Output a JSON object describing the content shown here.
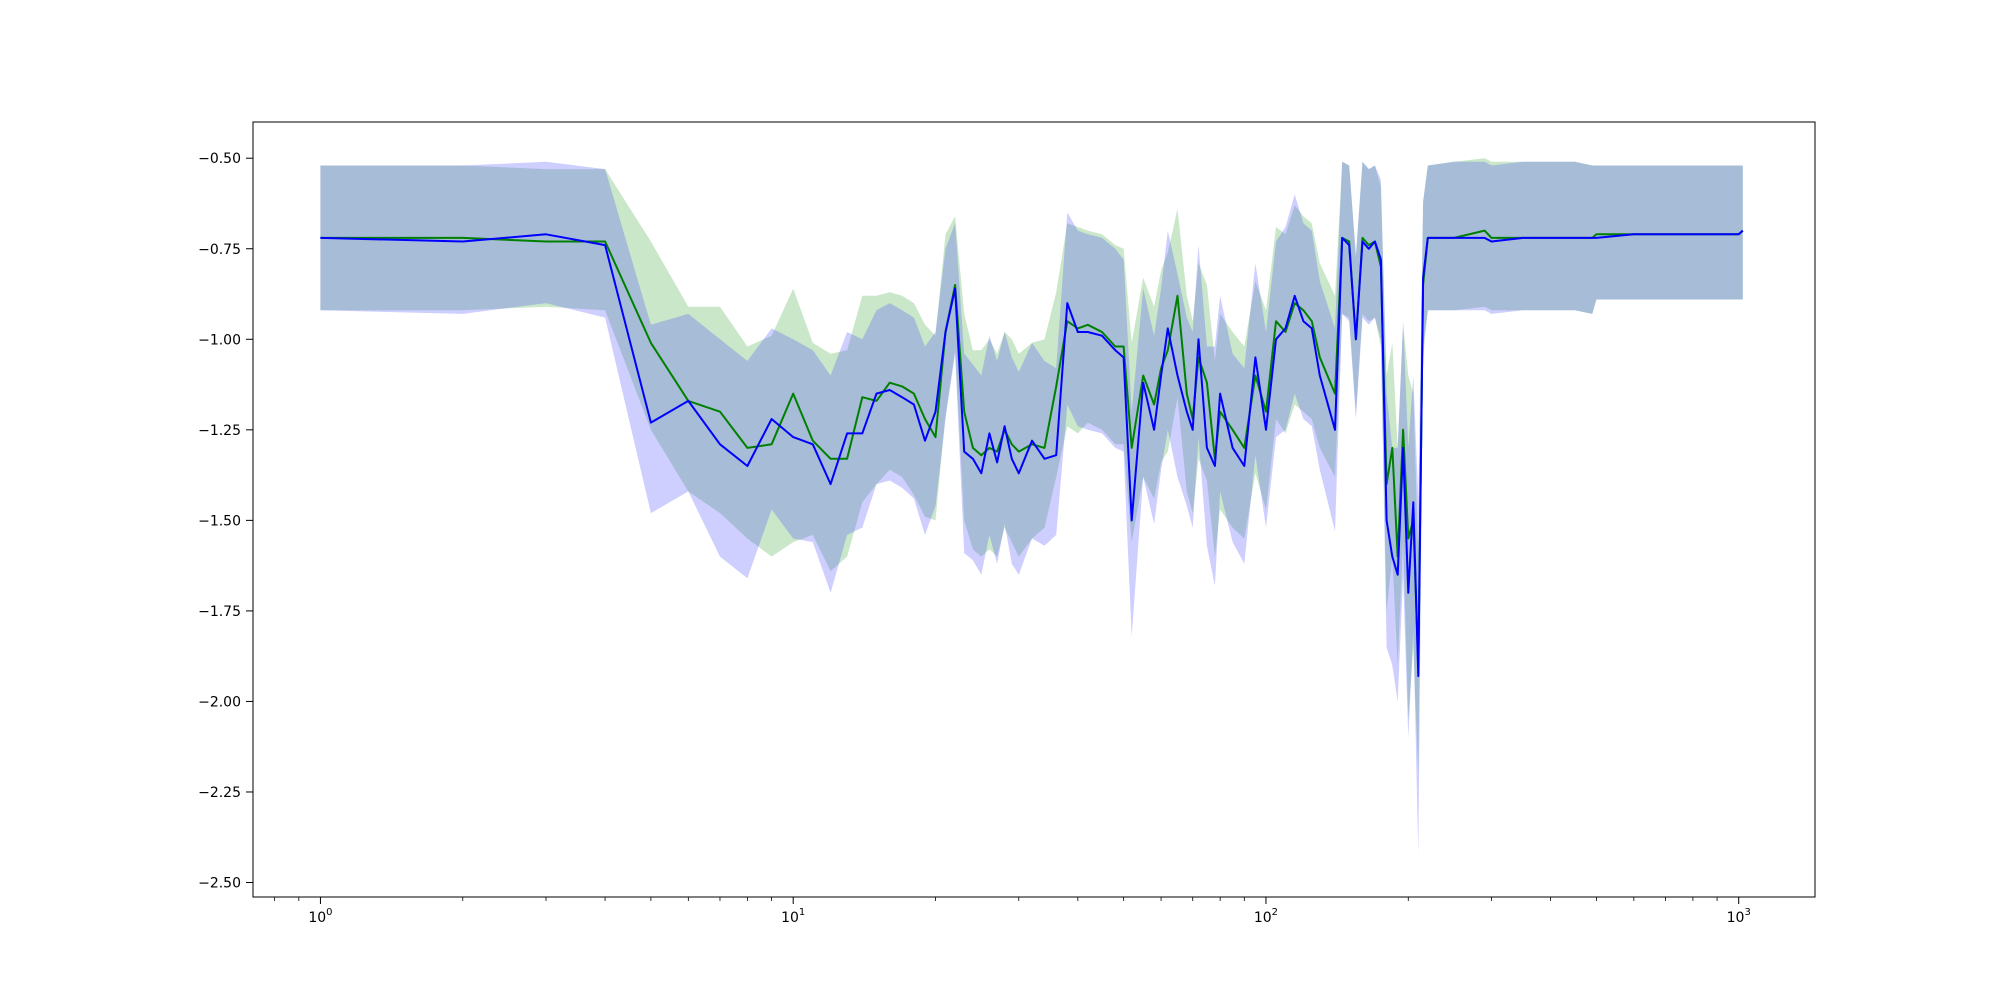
{
  "chart_data": {
    "type": "line",
    "x_scale": "log",
    "xlim": [
      0.72,
      1450
    ],
    "ylim": [
      -2.54,
      -0.4
    ],
    "grid": false,
    "legend": "none",
    "x_ticks": [
      {
        "value": 1,
        "base": "10",
        "exp": "0"
      },
      {
        "value": 10,
        "base": "10",
        "exp": "1"
      },
      {
        "value": 100,
        "base": "10",
        "exp": "2"
      },
      {
        "value": 1000,
        "base": "10",
        "exp": "3"
      }
    ],
    "y_ticks": [
      {
        "value": -0.5,
        "label": "−0.50"
      },
      {
        "value": -0.75,
        "label": "−0.75"
      },
      {
        "value": -1.0,
        "label": "−1.00"
      },
      {
        "value": -1.25,
        "label": "−1.25"
      },
      {
        "value": -1.5,
        "label": "−1.50"
      },
      {
        "value": -1.75,
        "label": "−1.75"
      },
      {
        "value": -2.0,
        "label": "−2.00"
      },
      {
        "value": -2.25,
        "label": "−2.25"
      },
      {
        "value": -2.5,
        "label": "−2.50"
      }
    ],
    "series": [
      {
        "color": "#008000",
        "band_color": "#2ca02c",
        "x": [
          1,
          2,
          3,
          4,
          5,
          6,
          7,
          8,
          9,
          10,
          11,
          12,
          13,
          14,
          15,
          16,
          17,
          18,
          19,
          20,
          21,
          22,
          23,
          24,
          25,
          26,
          27,
          28,
          29,
          30,
          32,
          34,
          36,
          38,
          40,
          42,
          45,
          48,
          50,
          52,
          55,
          58,
          60,
          62,
          65,
          68,
          70,
          72,
          75,
          78,
          80,
          85,
          90,
          95,
          100,
          105,
          110,
          115,
          120,
          125,
          130,
          140,
          145,
          150,
          155,
          160,
          165,
          170,
          175,
          180,
          185,
          190,
          195,
          200,
          205,
          210,
          215,
          220,
          250,
          290,
          300,
          350,
          390,
          400,
          450,
          490,
          500,
          600,
          800,
          1000,
          1020
        ],
        "y": [
          -0.72,
          -0.72,
          -0.73,
          -0.73,
          -1.01,
          -1.17,
          -1.2,
          -1.3,
          -1.29,
          -1.15,
          -1.28,
          -1.33,
          -1.33,
          -1.16,
          -1.17,
          -1.12,
          -1.13,
          -1.15,
          -1.22,
          -1.27,
          -0.98,
          -0.85,
          -1.2,
          -1.3,
          -1.32,
          -1.3,
          -1.31,
          -1.25,
          -1.29,
          -1.31,
          -1.29,
          -1.3,
          -1.13,
          -0.95,
          -0.97,
          -0.96,
          -0.98,
          -1.02,
          -1.02,
          -1.3,
          -1.1,
          -1.18,
          -1.08,
          -1.03,
          -0.88,
          -1.15,
          -1.22,
          -1.05,
          -1.12,
          -1.33,
          -1.2,
          -1.25,
          -1.3,
          -1.1,
          -1.2,
          -0.95,
          -0.98,
          -0.9,
          -0.92,
          -0.95,
          -1.05,
          -1.15,
          -0.72,
          -0.73,
          -1.0,
          -0.72,
          -0.74,
          -0.73,
          -0.8,
          -1.4,
          -1.3,
          -1.6,
          -1.25,
          -1.55,
          -1.5,
          -1.9,
          -0.85,
          -0.72,
          -0.72,
          -0.7,
          -0.72,
          -0.72,
          -0.72,
          -0.72,
          -0.72,
          -0.72,
          -0.71,
          -0.71,
          -0.71,
          -0.71,
          -0.7
        ],
        "lower": [
          -0.92,
          -0.92,
          -0.91,
          -0.92,
          -1.25,
          -1.42,
          -1.48,
          -1.55,
          -1.6,
          -1.56,
          -1.54,
          -1.64,
          -1.6,
          -1.45,
          -1.4,
          -1.36,
          -1.38,
          -1.43,
          -1.49,
          -1.5,
          -1.21,
          -1.03,
          -1.5,
          -1.58,
          -1.6,
          -1.58,
          -1.6,
          -1.52,
          -1.56,
          -1.6,
          -1.55,
          -1.52,
          -1.38,
          -1.24,
          -1.26,
          -1.23,
          -1.25,
          -1.29,
          -1.29,
          -1.56,
          -1.38,
          -1.44,
          -1.34,
          -1.31,
          -1.16,
          -1.42,
          -1.48,
          -1.33,
          -1.39,
          -1.6,
          -1.47,
          -1.52,
          -1.55,
          -1.37,
          -1.47,
          -1.22,
          -1.26,
          -1.18,
          -1.2,
          -1.22,
          -1.3,
          -1.38,
          -0.93,
          -0.94,
          -1.2,
          -0.93,
          -0.95,
          -0.94,
          -1.02,
          -1.75,
          -1.6,
          -1.9,
          -1.55,
          -2.05,
          -1.85,
          -2.2,
          -1.05,
          -0.92,
          -0.92,
          -0.91,
          -0.92,
          -0.92,
          -0.92,
          -0.92,
          -0.92,
          -0.93,
          -0.89,
          -0.89,
          -0.89,
          -0.89,
          -0.89
        ],
        "upper": [
          -0.52,
          -0.52,
          -0.53,
          -0.53,
          -0.73,
          -0.91,
          -0.91,
          -1.02,
          -0.99,
          -0.86,
          -1.01,
          -1.04,
          -1.03,
          -0.88,
          -0.88,
          -0.87,
          -0.88,
          -0.9,
          -0.96,
          -0.99,
          -0.71,
          -0.66,
          -0.93,
          -1.03,
          -1.03,
          -1.0,
          -1.04,
          -0.98,
          -1.0,
          -1.04,
          -1.01,
          -1.0,
          -0.87,
          -0.68,
          -0.69,
          -0.7,
          -0.71,
          -0.74,
          -0.75,
          -1.01,
          -0.83,
          -0.91,
          -0.81,
          -0.76,
          -0.64,
          -0.88,
          -0.95,
          -0.79,
          -0.85,
          -1.06,
          -0.93,
          -0.98,
          -1.02,
          -0.84,
          -0.92,
          -0.69,
          -0.71,
          -0.63,
          -0.66,
          -0.68,
          -0.79,
          -0.88,
          -0.51,
          -0.52,
          -0.77,
          -0.51,
          -0.53,
          -0.52,
          -0.58,
          -1.1,
          -1.01,
          -1.3,
          -0.96,
          -1.1,
          -1.15,
          -1.6,
          -0.62,
          -0.52,
          -0.51,
          -0.5,
          -0.51,
          -0.51,
          -0.51,
          -0.51,
          -0.51,
          -0.52,
          -0.52,
          -0.52,
          -0.52,
          -0.52,
          -0.52
        ]
      },
      {
        "color": "#0000ff",
        "band_color": "#3b3bff",
        "x": [
          1,
          2,
          3,
          4,
          5,
          6,
          7,
          8,
          9,
          10,
          11,
          12,
          13,
          14,
          15,
          16,
          17,
          18,
          19,
          20,
          21,
          22,
          23,
          24,
          25,
          26,
          27,
          28,
          29,
          30,
          32,
          34,
          36,
          38,
          40,
          42,
          45,
          48,
          50,
          52,
          55,
          58,
          60,
          62,
          65,
          68,
          70,
          72,
          75,
          78,
          80,
          85,
          90,
          95,
          100,
          105,
          110,
          115,
          120,
          125,
          130,
          140,
          145,
          150,
          155,
          160,
          165,
          170,
          175,
          180,
          185,
          190,
          195,
          200,
          205,
          210,
          215,
          220,
          250,
          290,
          300,
          350,
          390,
          400,
          450,
          490,
          500,
          600,
          800,
          1000,
          1020
        ],
        "y": [
          -0.72,
          -0.73,
          -0.71,
          -0.74,
          -1.23,
          -1.17,
          -1.29,
          -1.35,
          -1.22,
          -1.27,
          -1.29,
          -1.4,
          -1.26,
          -1.26,
          -1.15,
          -1.14,
          -1.16,
          -1.18,
          -1.28,
          -1.2,
          -0.98,
          -0.86,
          -1.31,
          -1.33,
          -1.37,
          -1.26,
          -1.34,
          -1.24,
          -1.33,
          -1.37,
          -1.28,
          -1.33,
          -1.32,
          -0.9,
          -0.98,
          -0.98,
          -0.99,
          -1.03,
          -1.05,
          -1.5,
          -1.12,
          -1.25,
          -1.1,
          -0.97,
          -1.1,
          -1.2,
          -1.25,
          -1.0,
          -1.3,
          -1.35,
          -1.15,
          -1.3,
          -1.35,
          -1.05,
          -1.25,
          -1.0,
          -0.97,
          -0.88,
          -0.95,
          -0.97,
          -1.1,
          -1.25,
          -0.72,
          -0.74,
          -1.0,
          -0.73,
          -0.75,
          -0.73,
          -0.78,
          -1.5,
          -1.6,
          -1.65,
          -1.3,
          -1.7,
          -1.45,
          -1.93,
          -0.83,
          -0.72,
          -0.72,
          -0.72,
          -0.73,
          -0.72,
          -0.72,
          -0.72,
          -0.72,
          -0.72,
          -0.72,
          -0.71,
          -0.71,
          -0.71,
          -0.7
        ],
        "lower": [
          -0.92,
          -0.93,
          -0.9,
          -0.94,
          -1.48,
          -1.42,
          -1.6,
          -1.66,
          -1.47,
          -1.55,
          -1.56,
          -1.7,
          -1.54,
          -1.52,
          -1.4,
          -1.39,
          -1.41,
          -1.44,
          -1.54,
          -1.46,
          -1.22,
          -1.04,
          -1.59,
          -1.61,
          -1.65,
          -1.54,
          -1.62,
          -1.51,
          -1.62,
          -1.65,
          -1.55,
          -1.57,
          -1.54,
          -1.18,
          -1.24,
          -1.25,
          -1.26,
          -1.3,
          -1.31,
          -1.82,
          -1.38,
          -1.51,
          -1.36,
          -1.25,
          -1.38,
          -1.46,
          -1.52,
          -1.27,
          -1.57,
          -1.68,
          -1.42,
          -1.56,
          -1.62,
          -1.32,
          -1.52,
          -1.27,
          -1.25,
          -1.15,
          -1.22,
          -1.24,
          -1.36,
          -1.53,
          -0.93,
          -0.95,
          -1.22,
          -0.94,
          -0.96,
          -0.94,
          -1.0,
          -1.85,
          -1.9,
          -2.0,
          -1.65,
          -2.1,
          -1.8,
          -2.42,
          -1.02,
          -0.92,
          -0.92,
          -0.92,
          -0.93,
          -0.92,
          -0.92,
          -0.92,
          -0.92,
          -0.93,
          -0.89,
          -0.89,
          -0.89,
          -0.89,
          -0.89
        ],
        "upper": [
          -0.52,
          -0.52,
          -0.51,
          -0.53,
          -0.96,
          -0.93,
          -1.0,
          -1.06,
          -0.97,
          -1.0,
          -1.03,
          -1.1,
          -0.98,
          -1.0,
          -0.92,
          -0.9,
          -0.92,
          -0.94,
          -1.02,
          -0.98,
          -0.75,
          -0.68,
          -1.04,
          -1.07,
          -1.1,
          -0.99,
          -1.06,
          -0.98,
          -1.05,
          -1.09,
          -1.01,
          -1.06,
          -1.08,
          -0.65,
          -0.7,
          -0.71,
          -0.72,
          -0.75,
          -0.78,
          -1.2,
          -0.86,
          -0.99,
          -0.86,
          -0.7,
          -0.82,
          -0.94,
          -0.98,
          -0.74,
          -1.02,
          -1.02,
          -0.88,
          -1.04,
          -1.08,
          -0.79,
          -0.98,
          -0.73,
          -0.69,
          -0.6,
          -0.68,
          -0.7,
          -0.84,
          -0.97,
          -0.51,
          -0.52,
          -0.77,
          -0.51,
          -0.53,
          -0.52,
          -0.56,
          -1.15,
          -1.3,
          -1.3,
          -0.95,
          -1.3,
          -1.1,
          -1.44,
          -0.62,
          -0.52,
          -0.51,
          -0.51,
          -0.52,
          -0.51,
          -0.51,
          -0.51,
          -0.51,
          -0.52,
          -0.52,
          -0.52,
          -0.52,
          -0.52,
          -0.52
        ]
      }
    ]
  }
}
